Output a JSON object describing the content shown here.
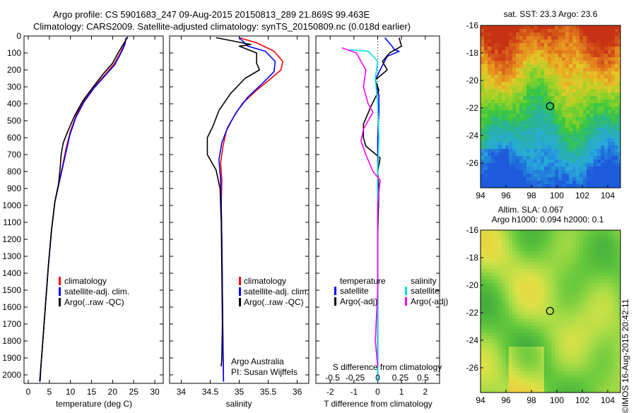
{
  "header": {
    "line1": "Argo profile: CS 5901683_247 09-Aug-2015 20150813_289 21.869S 99.463E",
    "line2": "Climatology: CARS2009. Satellite-adjusted climatology: synTS_20150809.nc (0.018d earlier)"
  },
  "side_label": "©IMOS 16-Aug-2015 20:42:11",
  "colors": {
    "climatology": "#ff0000",
    "satellite": "#0000ff",
    "argo": "#000000",
    "sal_satellite": "#00e0e0",
    "sal_argo": "#ff00ff"
  },
  "chart_data": [
    {
      "type": "line",
      "name": "temperature profile",
      "xlabel": "temperature (deg C)",
      "ylabel": "",
      "xlim": [
        -1,
        32
      ],
      "ylim": [
        2050,
        0
      ],
      "xticks": [
        "0",
        "5",
        "10",
        "15",
        "20",
        "25",
        "30"
      ],
      "xtick_values": [
        0,
        5,
        10,
        15,
        20,
        25,
        30
      ],
      "yticks": [
        "0",
        "100",
        "200",
        "300",
        "400",
        "500",
        "600",
        "700",
        "800",
        "900",
        "1000",
        "1100",
        "1200",
        "1300",
        "1400",
        "1500",
        "1600",
        "1700",
        "1800",
        "1900",
        "2000"
      ],
      "legend": [
        "climatology",
        "satellite-adj. clim.",
        "Argo(..raw -QC)"
      ],
      "series": [
        {
          "name": "climatology",
          "color": "#ff0000",
          "points": [
            [
              23.3,
              10
            ],
            [
              22.6,
              60
            ],
            [
              21.8,
              100
            ],
            [
              20.5,
              160
            ],
            [
              18.5,
              220
            ],
            [
              16,
              290
            ],
            [
              13.5,
              370
            ],
            [
              11.5,
              460
            ],
            [
              10,
              560
            ],
            [
              9,
              660
            ],
            [
              8.2,
              760
            ],
            [
              7.2,
              870
            ],
            [
              6.3,
              980
            ],
            [
              5.5,
              1150
            ],
            [
              4.8,
              1350
            ],
            [
              4.2,
              1550
            ],
            [
              3.6,
              1750
            ],
            [
              3,
              1950
            ],
            [
              2.8,
              2040
            ]
          ]
        },
        {
          "name": "satellite-adj. clim.",
          "color": "#0000ff",
          "points": [
            [
              23.2,
              10
            ],
            [
              22.9,
              50
            ],
            [
              22,
              100
            ],
            [
              20.5,
              170
            ],
            [
              18,
              240
            ],
            [
              15.5,
              310
            ],
            [
              13.2,
              390
            ],
            [
              11.3,
              480
            ],
            [
              9.9,
              580
            ],
            [
              9,
              680
            ],
            [
              8.2,
              770
            ],
            [
              7.3,
              870
            ],
            [
              6.3,
              980
            ],
            [
              5.5,
              1150
            ],
            [
              4.8,
              1350
            ],
            [
              4.2,
              1550
            ],
            [
              3.6,
              1750
            ],
            [
              3,
              1950
            ],
            [
              2.8,
              2040
            ]
          ]
        },
        {
          "name": "Argo(..raw -QC)",
          "color": "#000000",
          "points": [
            [
              23.6,
              5
            ],
            [
              22.5,
              50
            ],
            [
              21.3,
              100
            ],
            [
              20,
              160
            ],
            [
              17.9,
              220
            ],
            [
              15.4,
              300
            ],
            [
              13,
              380
            ],
            [
              11,
              470
            ],
            [
              9.4,
              560
            ],
            [
              8.3,
              630
            ],
            [
              7.8,
              700
            ],
            [
              7.6,
              770
            ],
            [
              7.2,
              870
            ],
            [
              6.3,
              980
            ],
            [
              5.5,
              1150
            ],
            [
              4.8,
              1350
            ],
            [
              4.2,
              1550
            ],
            [
              3.6,
              1750
            ],
            [
              3,
              1950
            ],
            [
              2.7,
              2040
            ]
          ]
        }
      ]
    },
    {
      "type": "line",
      "name": "salinity profile",
      "xlabel": "salinity",
      "xlim": [
        33.8,
        36.2
      ],
      "ylim": [
        2050,
        0
      ],
      "xticks": [
        "34",
        "34.5",
        "35",
        "35.5",
        "36"
      ],
      "xtick_values": [
        34,
        34.5,
        35,
        35.5,
        36
      ],
      "legend": [
        "climatology",
        "satellite-adj. clim.",
        "Argo(..raw -QC)"
      ],
      "annotation": [
        "Argo Australia",
        "PI: Susan Wijffels"
      ],
      "series": [
        {
          "name": "climatology",
          "color": "#ff0000",
          "points": [
            [
              35.0,
              10
            ],
            [
              35.3,
              40
            ],
            [
              35.6,
              90
            ],
            [
              35.75,
              150
            ],
            [
              35.72,
              200
            ],
            [
              35.55,
              250
            ],
            [
              35.3,
              320
            ],
            [
              35.05,
              400
            ],
            [
              34.9,
              480
            ],
            [
              34.78,
              560
            ],
            [
              34.72,
              650
            ],
            [
              34.68,
              750
            ],
            [
              34.7,
              850
            ],
            [
              34.69,
              1000
            ],
            [
              34.7,
              1200
            ],
            [
              34.71,
              1500
            ],
            [
              34.72,
              1800
            ],
            [
              34.73,
              2040
            ]
          ]
        },
        {
          "name": "satellite-adj. clim.",
          "color": "#0000ff",
          "points": [
            [
              35.0,
              10
            ],
            [
              35.15,
              60
            ],
            [
              35.45,
              90
            ],
            [
              35.62,
              150
            ],
            [
              35.6,
              210
            ],
            [
              35.4,
              280
            ],
            [
              35.15,
              360
            ],
            [
              34.95,
              450
            ],
            [
              34.8,
              540
            ],
            [
              34.7,
              630
            ],
            [
              34.65,
              730
            ],
            [
              34.68,
              850
            ],
            [
              34.69,
              1000
            ],
            [
              34.7,
              1200
            ],
            [
              34.71,
              1500
            ],
            [
              34.72,
              1800
            ],
            [
              34.73,
              2040
            ]
          ]
        },
        {
          "name": "Argo(..raw -QC)",
          "color": "#000000",
          "points": [
            [
              34.6,
              10
            ],
            [
              35.2,
              50
            ],
            [
              35.0,
              60
            ],
            [
              35.3,
              100
            ],
            [
              35.3,
              160
            ],
            [
              35.35,
              200
            ],
            [
              35.1,
              250
            ],
            [
              34.85,
              340
            ],
            [
              34.65,
              440
            ],
            [
              34.55,
              530
            ],
            [
              34.45,
              600
            ],
            [
              34.45,
              700
            ],
            [
              34.6,
              790
            ],
            [
              34.67,
              900
            ],
            [
              34.69,
              1100
            ],
            [
              34.7,
              1400
            ],
            [
              34.71,
              1700
            ],
            [
              34.7,
              1900
            ],
            [
              34.69,
              1950
            ]
          ]
        }
      ]
    },
    {
      "type": "line",
      "name": "difference from climatology",
      "xlabel": "T difference from climatology",
      "xlabel2": "S difference from climatology",
      "xlim": [
        -2.6,
        2.6
      ],
      "ylim": [
        2050,
        0
      ],
      "xticks": [
        "-2",
        "-1",
        "0",
        "1",
        "2"
      ],
      "xtick_values": [
        -2,
        -1,
        0,
        1,
        2
      ],
      "s_ticks": [
        "-0.5",
        "-0.25",
        "0",
        "0.25",
        "0.5"
      ],
      "s_tick_values": [
        -1.9,
        -0.95,
        0,
        0.95,
        1.9
      ],
      "legend_temp_title": "temperature",
      "legend_sal_title": "salinity",
      "legend": [
        "satellite",
        "Argo(-adj)",
        "satellite",
        "Argo(-adj)"
      ],
      "series": [
        {
          "name": "T satellite",
          "color": "#0000ff",
          "points": [
            [
              0.3,
              10
            ],
            [
              0.6,
              60
            ],
            [
              0.7,
              80
            ],
            [
              0.9,
              90
            ],
            [
              0.4,
              120
            ],
            [
              0.1,
              200
            ],
            [
              -0.1,
              260
            ],
            [
              0.05,
              350
            ],
            [
              0.05,
              450
            ],
            [
              0.0,
              600
            ],
            [
              0.0,
              800
            ],
            [
              0.0,
              1000
            ],
            [
              0.0,
              1400
            ],
            [
              0.0,
              1800
            ],
            [
              0,
              2040
            ]
          ]
        },
        {
          "name": "T Argo(-adj)",
          "color": "#000000",
          "points": [
            [
              0.9,
              10
            ],
            [
              1.0,
              60
            ],
            [
              0.5,
              100
            ],
            [
              0.2,
              150
            ],
            [
              0.4,
              200
            ],
            [
              -0.1,
              260
            ],
            [
              0.05,
              320
            ],
            [
              -0.3,
              420
            ],
            [
              -0.6,
              520
            ],
            [
              -0.6,
              600
            ],
            [
              -0.5,
              650
            ],
            [
              0.1,
              720
            ],
            [
              0.0,
              800
            ],
            [
              0.05,
              900
            ],
            [
              0.0,
              1200
            ],
            [
              0.0,
              1800
            ],
            [
              0,
              1950
            ]
          ]
        },
        {
          "name": "S satellite",
          "color": "#00e0e0",
          "points": [
            [
              -1.2,
              80
            ],
            [
              -0.4,
              90
            ],
            [
              0.0,
              150
            ],
            [
              -0.1,
              250
            ],
            [
              0.0,
              400
            ],
            [
              0.05,
              600
            ],
            [
              0.0,
              800
            ],
            [
              0.0,
              1200
            ],
            [
              0.0,
              1600
            ],
            [
              0,
              2040
            ]
          ]
        },
        {
          "name": "S Argo(-adj)",
          "color": "#ff00ff",
          "points": [
            [
              -1.5,
              70
            ],
            [
              -0.9,
              100
            ],
            [
              -0.7,
              150
            ],
            [
              -0.5,
              200
            ],
            [
              -0.6,
              300
            ],
            [
              -0.4,
              400
            ],
            [
              -0.2,
              450
            ],
            [
              -0.4,
              500
            ],
            [
              -0.6,
              550
            ],
            [
              -0.7,
              620
            ],
            [
              -0.5,
              700
            ],
            [
              -0.2,
              800
            ],
            [
              0.1,
              850
            ],
            [
              0.0,
              1000
            ],
            [
              0.0,
              1500
            ],
            [
              -0.1,
              1800
            ],
            [
              0,
              1950
            ]
          ]
        }
      ]
    },
    {
      "type": "heatmap",
      "name": "SST map",
      "title": "sat. SST: 23.3  Argo: 23.6",
      "xlim": [
        94,
        105
      ],
      "ylim": [
        -27.8,
        -16
      ],
      "xticks": [
        "94",
        "96",
        "98",
        "100",
        "102",
        "104"
      ],
      "xtick_values": [
        94,
        96,
        98,
        100,
        102,
        104
      ],
      "yticks": [
        "-16",
        "-18",
        "-20",
        "-22",
        "-24",
        "-26"
      ],
      "ytick_values": [
        -16,
        -18,
        -20,
        -22,
        -24,
        -26
      ],
      "marker": {
        "lon": 99.463,
        "lat": -21.869
      }
    },
    {
      "type": "heatmap",
      "name": "SLA map",
      "title": "Altim. SLA: 0.067",
      "subtitle": "Argo h1000: 0.094  h2000: 0.1",
      "xlim": [
        94,
        105
      ],
      "ylim": [
        -27.8,
        -16
      ],
      "xticks": [
        "94",
        "96",
        "98",
        "100",
        "102",
        "104"
      ],
      "xtick_values": [
        94,
        96,
        98,
        100,
        102,
        104
      ],
      "yticks": [
        "-16",
        "-18",
        "-20",
        "-22",
        "-24",
        "-26"
      ],
      "ytick_values": [
        -16,
        -18,
        -20,
        -22,
        -24,
        -26
      ],
      "marker": {
        "lon": 99.463,
        "lat": -21.869
      }
    }
  ]
}
